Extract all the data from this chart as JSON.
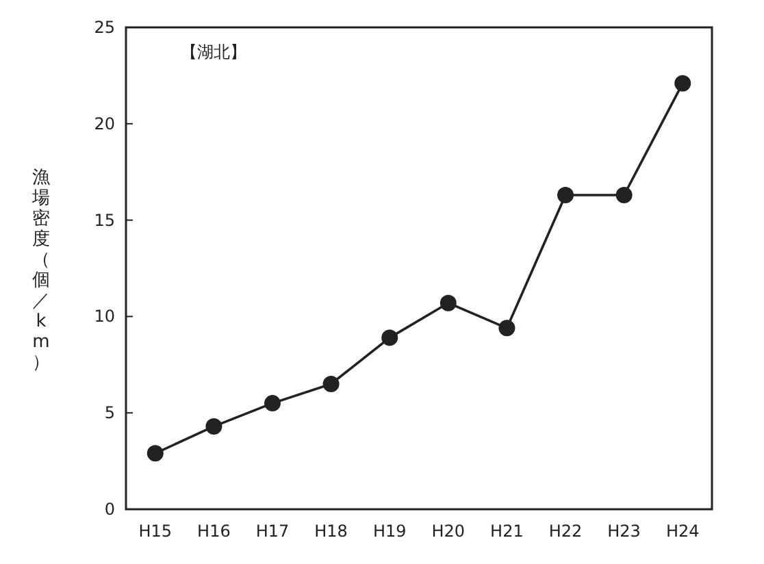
{
  "chart_data": {
    "type": "line",
    "ylabel": "漁場密度（個／km）",
    "categories": [
      "H15",
      "H16",
      "H17",
      "H18",
      "H19",
      "H20",
      "H21",
      "H22",
      "H23",
      "H24"
    ],
    "series": [
      {
        "color": "#222222",
        "values": [
          2.9,
          4.3,
          5.5,
          6.5,
          8.9,
          10.7,
          9.4,
          16.3,
          16.3,
          22.1
        ]
      }
    ],
    "ylim": [
      0,
      25
    ],
    "yticks": [
      0,
      5,
      10,
      15,
      20,
      25
    ],
    "marker": "circle",
    "line_style": "solid",
    "grid": false,
    "annotations": [
      "【湖北】"
    ]
  }
}
